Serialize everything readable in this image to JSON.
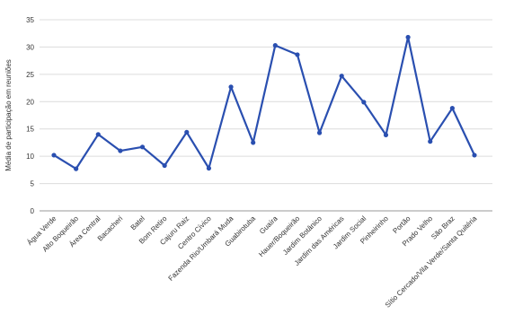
{
  "chart_data": {
    "type": "line",
    "title": "",
    "ylabel": "Média de participação em reuniões",
    "xlabel": "",
    "ylim": [
      0,
      35
    ],
    "yticks": [
      0,
      5,
      10,
      15,
      20,
      25,
      30,
      35
    ],
    "grid": true,
    "categories": [
      "Água Verde",
      "Alto Boqueirão",
      "Área Central",
      "Bacacheri",
      "Batel",
      "Bom Retiro",
      "Cajuru Raiz",
      "Centro Cívico",
      "Fazenda Rio/Umbará Muda",
      "Guabirotuba",
      "Guaíra",
      "Hauer/Boqueirão",
      "Jardim Botânico",
      "Jardim das Américas",
      "Jardim Social",
      "Pinheirinho",
      "Portão",
      "Prado Velho",
      "São Braz",
      "Sítio Cercado/Vila Verde/Santa Quitéria"
    ],
    "series": [
      {
        "values": [
          10.2,
          7.7,
          14.0,
          11.0,
          11.7,
          8.3,
          14.4,
          7.8,
          22.7,
          12.5,
          30.3,
          28.6,
          14.3,
          24.7,
          19.9,
          13.9,
          31.8,
          12.7,
          18.8,
          10.2
        ],
        "color": "#2a4fb0"
      }
    ]
  }
}
